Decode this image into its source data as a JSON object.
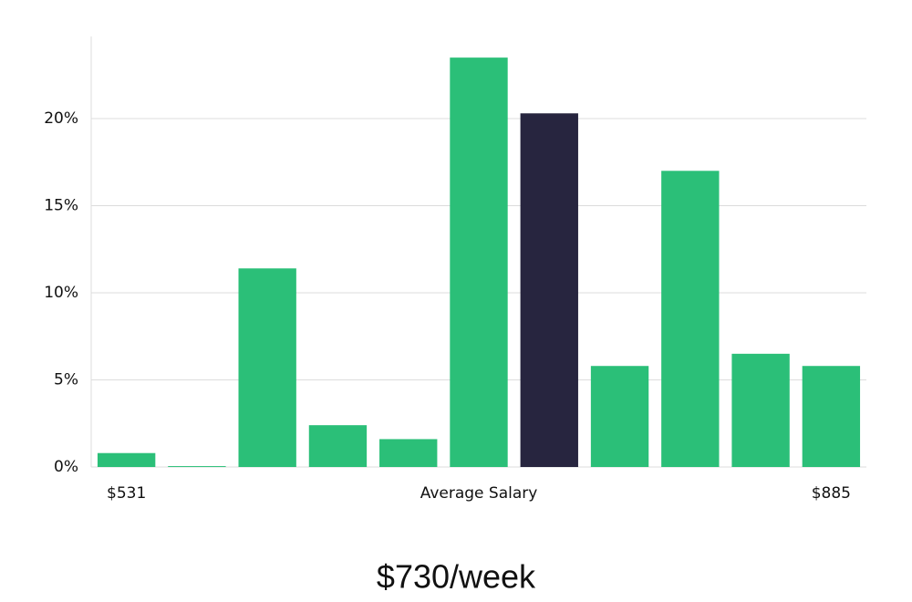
{
  "chart_data": {
    "type": "bar",
    "title": "$730/week",
    "x_label": "Average Salary",
    "categories": [
      "$531",
      null,
      null,
      null,
      null,
      null,
      null,
      null,
      null,
      null,
      "$885"
    ],
    "values": [
      0.8,
      0.05,
      11.4,
      2.4,
      1.6,
      23.5,
      20.3,
      5.8,
      17.0,
      6.5,
      5.8
    ],
    "colors": [
      "#2bbf78",
      "#2bbf78",
      "#2bbf78",
      "#2bbf78",
      "#2bbf78",
      "#2bbf78",
      "#27253f",
      "#2bbf78",
      "#2bbf78",
      "#2bbf78",
      "#2bbf78"
    ],
    "ylim": [
      0,
      25
    ],
    "yticks": [
      {
        "value": 0,
        "label": "0%"
      },
      {
        "value": 5,
        "label": "5%"
      },
      {
        "value": 10,
        "label": "10%"
      },
      {
        "value": 15,
        "label": "15%"
      },
      {
        "value": 20,
        "label": "20%"
      }
    ],
    "grid": true
  }
}
